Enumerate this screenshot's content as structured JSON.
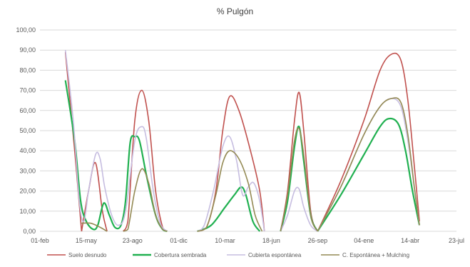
{
  "chart_data": {
    "type": "line",
    "title": "% Pulgón",
    "xlabel": "",
    "ylabel": "",
    "ylim": [
      0,
      100
    ],
    "y_ticks": [
      "0,00",
      "10,00",
      "20,00",
      "30,00",
      "40,00",
      "50,00",
      "60,00",
      "70,00",
      "80,00",
      "90,00",
      "100,00"
    ],
    "x_ticks": [
      "01-feb",
      "15-may",
      "23-ago",
      "01-dic",
      "10-mar",
      "18-jun",
      "26-sep",
      "04-ene",
      "14-abr",
      "23-jul"
    ],
    "grid": true,
    "legend_position": "bottom",
    "series": [
      {
        "name": "Suelo desnudo",
        "color": "#c0504d",
        "segments": [
          [
            [
              0.55,
              89
            ],
            [
              0.75,
              40
            ],
            [
              0.9,
              0
            ]
          ],
          [
            [
              0.9,
              0
            ],
            [
              1.05,
              20
            ],
            [
              1.2,
              34
            ],
            [
              1.35,
              10
            ],
            [
              1.45,
              0
            ]
          ],
          [
            [
              1.8,
              0
            ],
            [
              1.9,
              5
            ],
            [
              2.05,
              55
            ],
            [
              2.2,
              70
            ],
            [
              2.35,
              55
            ],
            [
              2.5,
              20
            ],
            [
              2.65,
              2
            ],
            [
              2.75,
              0
            ]
          ],
          [
            [
              3.4,
              0
            ],
            [
              3.6,
              2
            ],
            [
              3.8,
              20
            ],
            [
              3.95,
              50
            ],
            [
              4.1,
              67
            ],
            [
              4.3,
              60
            ],
            [
              4.55,
              40
            ],
            [
              4.75,
              20
            ],
            [
              4.85,
              0
            ]
          ],
          [
            [
              5.2,
              0
            ],
            [
              5.35,
              20
            ],
            [
              5.5,
              55
            ],
            [
              5.6,
              69
            ],
            [
              5.7,
              50
            ],
            [
              5.85,
              10
            ],
            [
              6.0,
              0
            ]
          ],
          [
            [
              6.0,
              0
            ],
            [
              6.5,
              25
            ],
            [
              7.0,
              55
            ],
            [
              7.35,
              80
            ],
            [
              7.6,
              88
            ],
            [
              7.8,
              85
            ],
            [
              7.95,
              65
            ],
            [
              8.1,
              30
            ],
            [
              8.2,
              5
            ]
          ]
        ]
      },
      {
        "name": "Cobertura sembrada",
        "color": "#20b050",
        "segments": [
          [
            [
              0.55,
              75
            ],
            [
              0.75,
              45
            ],
            [
              0.88,
              15
            ],
            [
              1.0,
              5
            ],
            [
              1.15,
              1
            ],
            [
              1.25,
              3
            ],
            [
              1.38,
              14
            ],
            [
              1.5,
              8
            ],
            [
              1.62,
              2
            ],
            [
              1.75,
              3
            ],
            [
              1.85,
              15
            ],
            [
              1.95,
              44
            ],
            [
              2.05,
              47
            ],
            [
              2.15,
              45
            ],
            [
              2.3,
              28
            ],
            [
              2.5,
              8
            ],
            [
              2.65,
              1
            ],
            [
              2.75,
              0
            ]
          ],
          [
            [
              3.4,
              0
            ],
            [
              3.7,
              3
            ],
            [
              4.0,
              12
            ],
            [
              4.2,
              18
            ],
            [
              4.35,
              22
            ],
            [
              4.45,
              18
            ],
            [
              4.6,
              5
            ],
            [
              4.75,
              0
            ]
          ],
          [
            [
              5.2,
              0
            ],
            [
              5.35,
              15
            ],
            [
              5.5,
              42
            ],
            [
              5.6,
              52
            ],
            [
              5.7,
              35
            ],
            [
              5.85,
              8
            ],
            [
              6.0,
              0
            ]
          ],
          [
            [
              6.0,
              0
            ],
            [
              6.5,
              18
            ],
            [
              7.0,
              38
            ],
            [
              7.35,
              52
            ],
            [
              7.55,
              56
            ],
            [
              7.75,
              53
            ],
            [
              7.9,
              40
            ],
            [
              8.05,
              20
            ],
            [
              8.2,
              3
            ]
          ]
        ]
      },
      {
        "name": "Cubierta espontánea",
        "color": "#c6bde0",
        "segments": [
          [
            [
              0.55,
              90
            ],
            [
              0.72,
              55
            ],
            [
              0.85,
              15
            ],
            [
              0.95,
              5
            ],
            [
              1.05,
              20
            ],
            [
              1.2,
              38
            ],
            [
              1.3,
              36
            ],
            [
              1.4,
              22
            ],
            [
              1.55,
              8
            ],
            [
              1.7,
              3
            ],
            [
              1.85,
              10
            ],
            [
              2.05,
              45
            ],
            [
              2.2,
              52
            ],
            [
              2.3,
              46
            ],
            [
              2.45,
              20
            ],
            [
              2.6,
              4
            ],
            [
              2.75,
              0
            ]
          ],
          [
            [
              3.4,
              0
            ],
            [
              3.55,
              3
            ],
            [
              3.75,
              20
            ],
            [
              3.95,
              42
            ],
            [
              4.1,
              47
            ],
            [
              4.25,
              35
            ],
            [
              4.38,
              18
            ],
            [
              4.5,
              22
            ],
            [
              4.62,
              24
            ],
            [
              4.75,
              15
            ],
            [
              4.85,
              0
            ]
          ],
          [
            [
              5.2,
              0
            ],
            [
              5.35,
              8
            ],
            [
              5.5,
              20
            ],
            [
              5.6,
              21
            ],
            [
              5.7,
              12
            ],
            [
              5.85,
              3
            ],
            [
              6.0,
              0
            ]
          ],
          [
            [
              6.0,
              0
            ],
            [
              6.5,
              22
            ],
            [
              7.0,
              48
            ],
            [
              7.35,
              62
            ],
            [
              7.6,
              66
            ],
            [
              7.8,
              62
            ],
            [
              7.95,
              45
            ],
            [
              8.1,
              20
            ],
            [
              8.2,
              3
            ]
          ]
        ]
      },
      {
        "name": "C. Espontánea + Mulching",
        "color": "#948a54",
        "segments": [
          [
            [
              0.9,
              4
            ],
            [
              1.1,
              4
            ],
            [
              1.3,
              2
            ],
            [
              1.45,
              0
            ]
          ],
          [
            [
              1.8,
              0
            ],
            [
              1.9,
              1
            ],
            [
              2.05,
              20
            ],
            [
              2.2,
              31
            ],
            [
              2.35,
              24
            ],
            [
              2.5,
              8
            ],
            [
              2.65,
              1
            ],
            [
              2.75,
              0
            ]
          ],
          [
            [
              3.4,
              0
            ],
            [
              3.6,
              2
            ],
            [
              3.8,
              18
            ],
            [
              3.95,
              34
            ],
            [
              4.1,
              40
            ],
            [
              4.3,
              36
            ],
            [
              4.5,
              24
            ],
            [
              4.65,
              8
            ],
            [
              4.8,
              0
            ]
          ],
          [
            [
              5.2,
              0
            ],
            [
              5.35,
              18
            ],
            [
              5.5,
              45
            ],
            [
              5.6,
              51
            ],
            [
              5.7,
              38
            ],
            [
              5.85,
              8
            ],
            [
              6.0,
              0
            ]
          ],
          [
            [
              6.0,
              0
            ],
            [
              6.5,
              22
            ],
            [
              7.0,
              48
            ],
            [
              7.35,
              62
            ],
            [
              7.6,
              66
            ],
            [
              7.8,
              64
            ],
            [
              7.95,
              48
            ],
            [
              8.1,
              20
            ],
            [
              8.2,
              3
            ]
          ]
        ]
      }
    ]
  }
}
